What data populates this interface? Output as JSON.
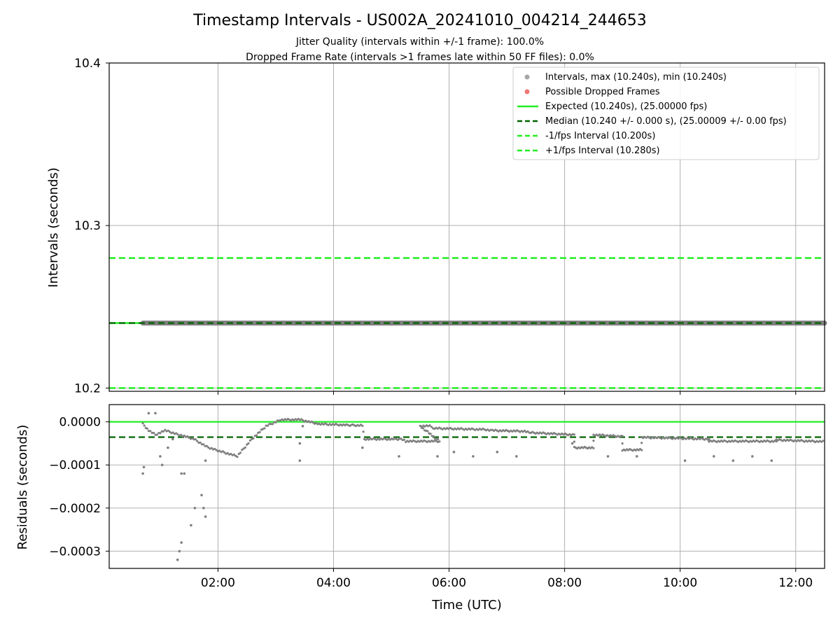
{
  "chart_data": [
    {
      "type": "scatter",
      "title": "Timestamp Intervals - US002A_20241010_004214_244653",
      "subtitle_lines": [
        "Jitter Quality (intervals within +/-1 frame): 100.0%",
        "Dropped Frame Rate (intervals >1 frames late within 50 FF files): 0.0%"
      ],
      "xlabel": "",
      "ylabel": "Intervals (seconds)",
      "xlim": [
        "00:07",
        "12:30"
      ],
      "ylim": [
        10.198,
        10.4
      ],
      "y_ticks": [
        "10.2",
        "10.3",
        "10.4"
      ],
      "grid": true,
      "legend_position": "top-right",
      "series": [
        {
          "name": "Intervals, max (10.240s), min (10.240s)",
          "style": "points",
          "color": "#808080",
          "x_range": [
            "00:42",
            "12:30"
          ],
          "y": 10.24
        },
        {
          "name": "Possible Dropped Frames",
          "style": "points",
          "color": "#ee5555",
          "count": 0
        },
        {
          "name": "Expected (10.240s), (25.00000 fps)",
          "style": "solid",
          "color": "#22ee22",
          "y": 10.24
        },
        {
          "name": "Median (10.240 +/- 0.000 s), (25.00009 +/- 0.00 fps)",
          "style": "dashed",
          "color": "#006400",
          "y": 10.24
        },
        {
          "name": "-1/fps Interval (10.200s)",
          "style": "dashed",
          "color": "#22ee22",
          "y": 10.2
        },
        {
          "name": "+1/fps Interval (10.280s)",
          "style": "dashed",
          "color": "#22ee22",
          "y": 10.28
        }
      ]
    },
    {
      "type": "scatter",
      "xlabel": "Time (UTC)",
      "ylabel": "Residuals (seconds)",
      "xlim": [
        "00:07",
        "12:30"
      ],
      "ylim": [
        -0.00034,
        4e-05
      ],
      "x_ticks": [
        "02:00",
        "04:00",
        "06:00",
        "08:00",
        "10:00",
        "12:00"
      ],
      "y_ticks": [
        "0.0000",
        "−0.0001",
        "−0.0002",
        "−0.0003"
      ],
      "grid": true,
      "reference_lines": [
        {
          "label": "expected",
          "style": "solid",
          "color": "#22ee22",
          "y": 0.0
        },
        {
          "label": "median",
          "style": "dashed",
          "color": "#006400",
          "y": -3.55e-05
        }
      ],
      "residual_trend": [
        [
          "00:42",
          -5e-06
        ],
        [
          "00:48",
          -2e-05
        ],
        [
          "00:55",
          -3e-05
        ],
        [
          "01:05",
          -2e-05
        ],
        [
          "01:20",
          -3e-05
        ],
        [
          "01:35",
          -4e-05
        ],
        [
          "01:50",
          -6e-05
        ],
        [
          "02:05",
          -7e-05
        ],
        [
          "02:20",
          -8e-05
        ],
        [
          "02:35",
          -4e-05
        ],
        [
          "02:50",
          -1e-05
        ],
        [
          "03:05",
          5e-06
        ],
        [
          "03:25",
          5e-06
        ],
        [
          "03:45",
          -5e-06
        ],
        [
          "04:20",
          -8e-06
        ],
        [
          "04:30",
          -8e-06
        ],
        [
          "04:32",
          -4e-05
        ],
        [
          "05:10",
          -4e-05
        ],
        [
          "05:15",
          -4.5e-05
        ],
        [
          "05:50",
          -4.5e-05
        ],
        [
          "05:30",
          -1e-05
        ],
        [
          "05:40",
          -1e-05
        ],
        [
          "05:45",
          -1.5e-05
        ],
        [
          "06:40",
          -1.8e-05
        ],
        [
          "06:45",
          -2e-05
        ],
        [
          "07:20",
          -2.2e-05
        ],
        [
          "07:25",
          -2.5e-05
        ],
        [
          "08:10",
          -3e-05
        ],
        [
          "08:10",
          -6e-05
        ],
        [
          "08:30",
          -6e-05
        ],
        [
          "08:30",
          -3e-05
        ],
        [
          "09:00",
          -3.4e-05
        ],
        [
          "09:00",
          -6.5e-05
        ],
        [
          "09:20",
          -6.5e-05
        ],
        [
          "09:20",
          -3.6e-05
        ],
        [
          "10:30",
          -4e-05
        ],
        [
          "10:30",
          -4.5e-05
        ],
        [
          "11:40",
          -4.5e-05
        ],
        [
          "11:40",
          -4.2e-05
        ],
        [
          "12:30",
          -4.6e-05
        ]
      ],
      "outliers": [
        [
          "00:42",
          -0.00012
        ],
        [
          "00:43",
          -0.000105
        ],
        [
          "00:48",
          2e-05
        ],
        [
          "00:55",
          2e-05
        ],
        [
          "01:00",
          -8e-05
        ],
        [
          "01:02",
          -0.0001
        ],
        [
          "01:08",
          -6e-05
        ],
        [
          "01:13",
          -4e-05
        ],
        [
          "01:18",
          -0.00032
        ],
        [
          "01:20",
          -0.0003
        ],
        [
          "01:22",
          -0.00028
        ],
        [
          "01:22",
          -0.00012
        ],
        [
          "01:25",
          -0.00012
        ],
        [
          "01:32",
          -0.00024
        ],
        [
          "01:36",
          -0.0002
        ],
        [
          "01:43",
          -0.00017
        ],
        [
          "01:45",
          -0.0002
        ],
        [
          "01:47",
          -0.00022
        ],
        [
          "01:47",
          -9e-05
        ],
        [
          "03:25",
          -9e-05
        ],
        [
          "03:25",
          -5e-05
        ],
        [
          "03:28",
          -1e-05
        ],
        [
          "04:30",
          -6e-05
        ],
        [
          "05:08",
          -8e-05
        ],
        [
          "05:48",
          -8e-05
        ],
        [
          "06:05",
          -7e-05
        ],
        [
          "06:25",
          -8e-05
        ],
        [
          "06:50",
          -7e-05
        ],
        [
          "07:10",
          -8e-05
        ],
        [
          "08:08",
          -5e-05
        ],
        [
          "08:45",
          -8e-05
        ],
        [
          "09:15",
          -8e-05
        ],
        [
          "10:05",
          -9e-05
        ],
        [
          "10:35",
          -8e-05
        ],
        [
          "10:55",
          -9e-05
        ],
        [
          "11:15",
          -8e-05
        ],
        [
          "11:35",
          -9e-05
        ]
      ]
    }
  ]
}
